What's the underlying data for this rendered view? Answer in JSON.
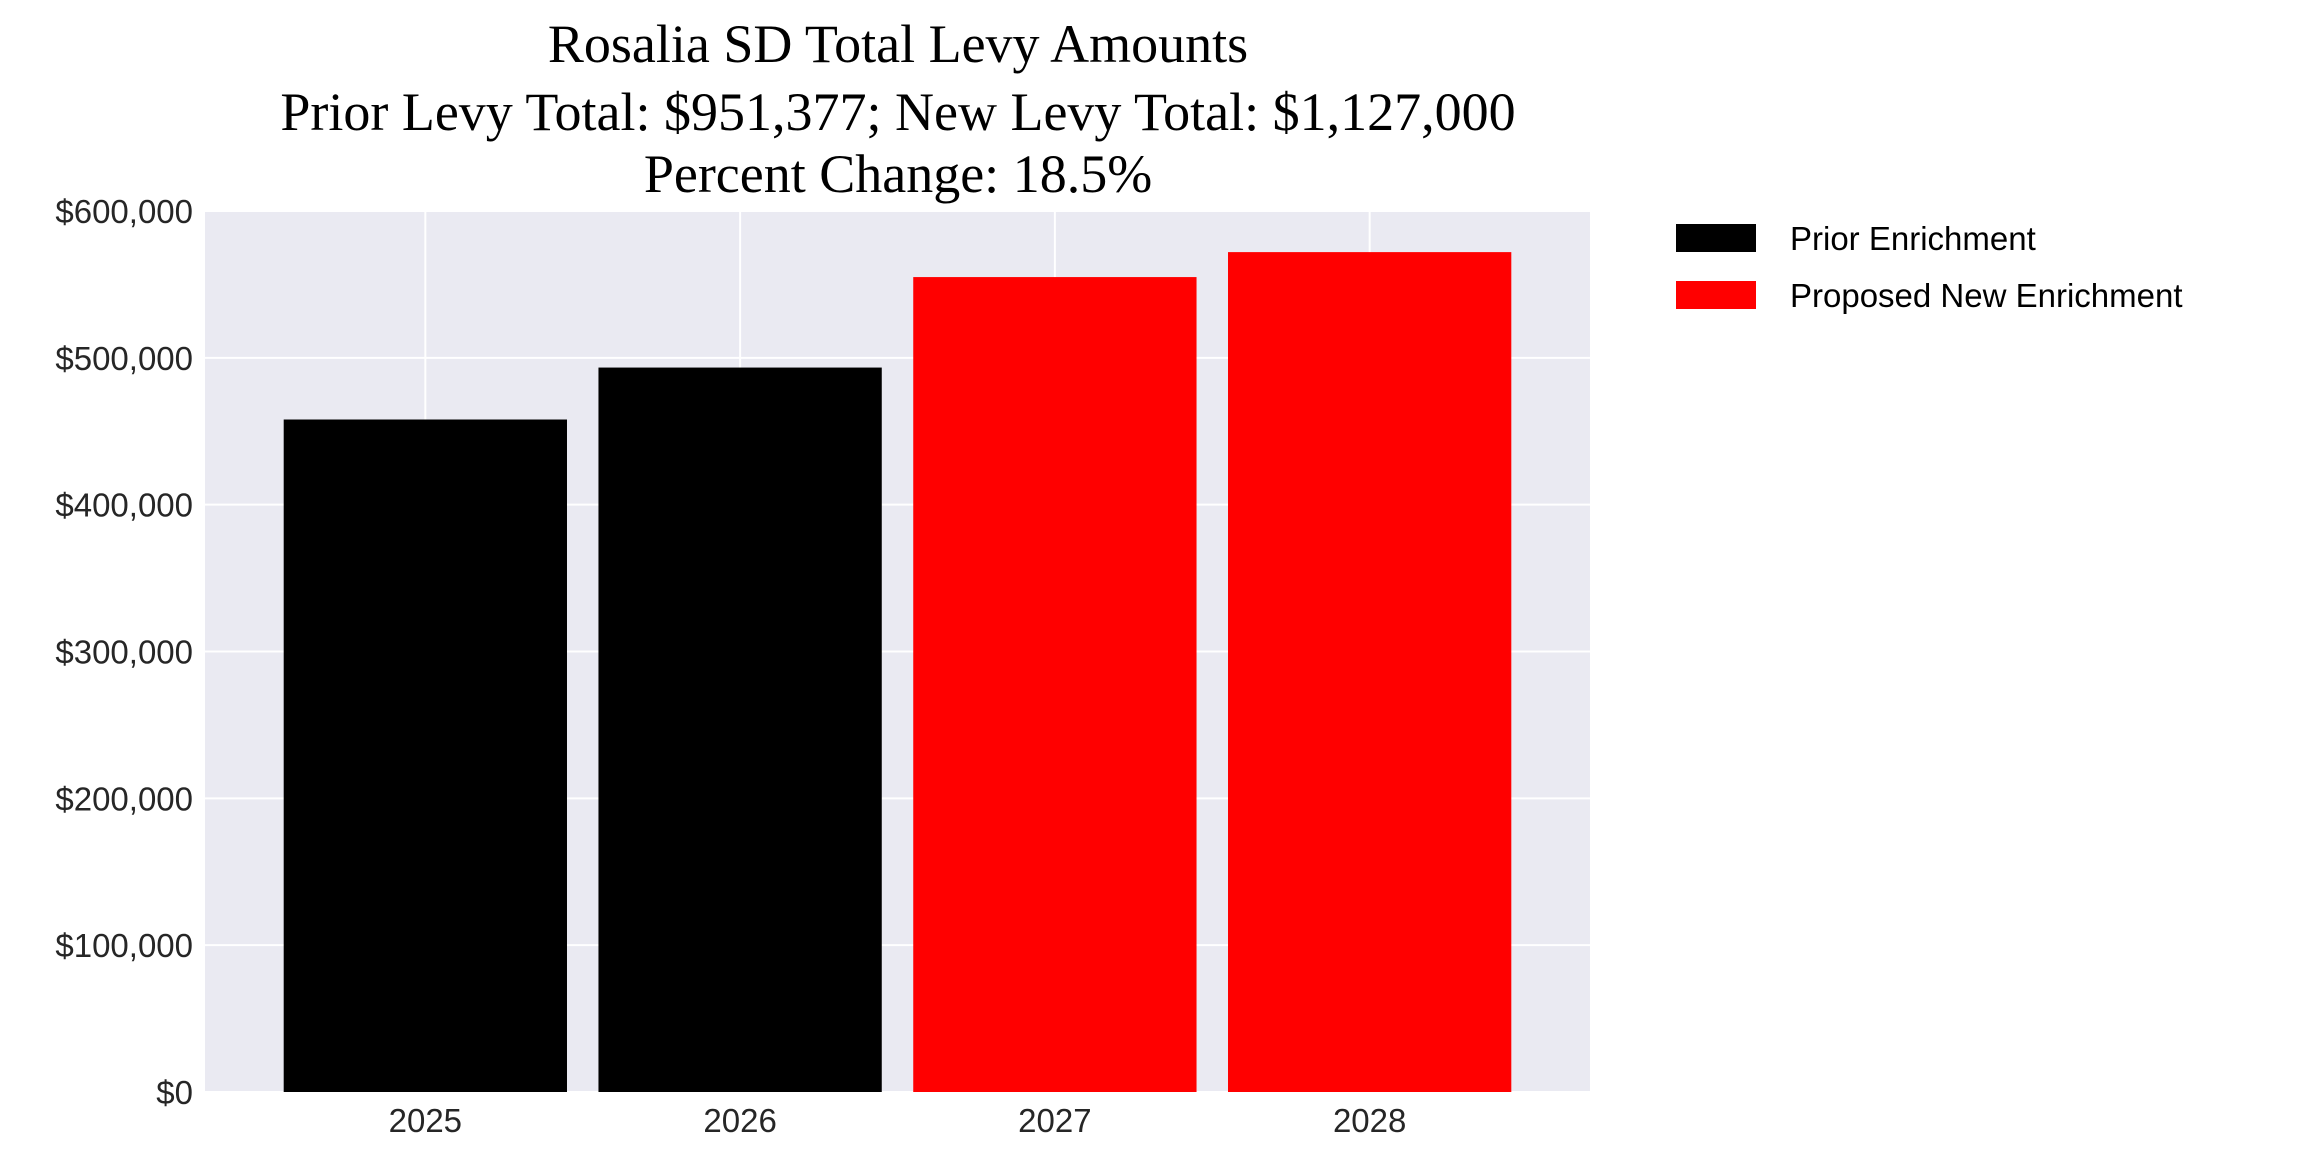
{
  "chart_data": {
    "type": "bar",
    "title_lines": [
      "Rosalia SD Total Levy Amounts",
      "Prior Levy Total:  $951,377; New Levy Total: $1,127,000",
      "Percent Change: 18.5%"
    ],
    "xlabel": "",
    "ylabel": "",
    "categories": [
      "2025",
      "2026",
      "2027",
      "2028"
    ],
    "values": [
      458000,
      493377,
      555000,
      572000
    ],
    "bar_series": [
      "Prior Enrichment",
      "Prior Enrichment",
      "Proposed New Enrichment",
      "Proposed New Enrichment"
    ],
    "series": [
      {
        "name": "Prior Enrichment",
        "color": "#000000"
      },
      {
        "name": "Proposed New Enrichment",
        "color": "#ff0000"
      }
    ],
    "ylim": [
      0,
      600000
    ],
    "yticks": [
      0,
      100000,
      200000,
      300000,
      400000,
      500000,
      600000
    ],
    "ytick_labels": [
      "$0",
      "$100,000",
      "$200,000",
      "$300,000",
      "$400,000",
      "$500,000",
      "$600,000"
    ],
    "grid": true,
    "background": "#eaeaf2",
    "legend_placement": "outside-top-right"
  }
}
